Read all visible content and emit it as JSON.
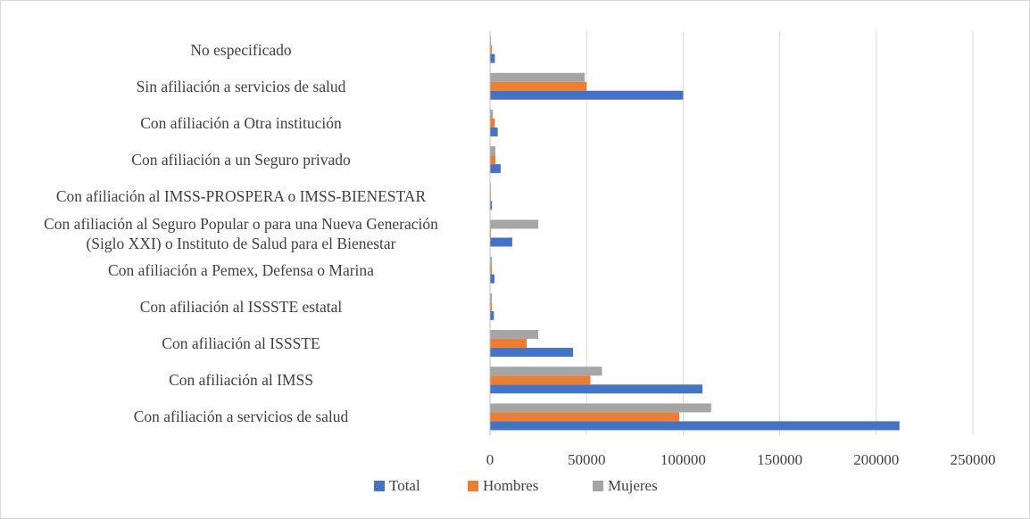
{
  "chart_data": {
    "type": "hbar",
    "categories": [
      "Con afiliación a servicios de salud",
      "Con afiliación al IMSS",
      "Con afiliación al ISSSTE",
      "Con afiliación al ISSSTE estatal",
      "Con afiliación a Pemex, Defensa o Marina",
      "Con afiliación al Seguro Popular o para  una Nueva Generación (Siglo XXI) o Instituto de Salud para el Bienestar",
      "Con afiliación al IMSS-PROSPERA o IMSS-BIENESTAR",
      "Con afiliación a un Seguro privado",
      "Con afiliación a Otra institución",
      "Sin afiliación a servicios de salud",
      "No especificado"
    ],
    "series": [
      {
        "name": "Total",
        "color": "#4472c4",
        "values": [
          212000,
          110000,
          43000,
          2000,
          2300,
          11500,
          1000,
          5500,
          4000,
          100000,
          2500
        ]
      },
      {
        "name": "Hombres",
        "color": "#ed7d31",
        "values": [
          98000,
          52000,
          19000,
          1000,
          1000,
          500,
          500,
          2800,
          2500,
          50000,
          1000
        ]
      },
      {
        "name": "Mujeres",
        "color": "#a5a5a5",
        "values": [
          114500,
          58000,
          25000,
          1000,
          1000,
          25000,
          500,
          2800,
          1500,
          49000,
          500
        ]
      }
    ],
    "xlim": [
      0,
      250000
    ],
    "xticks": [
      0,
      50000,
      100000,
      150000,
      200000,
      250000
    ],
    "grid": true
  }
}
